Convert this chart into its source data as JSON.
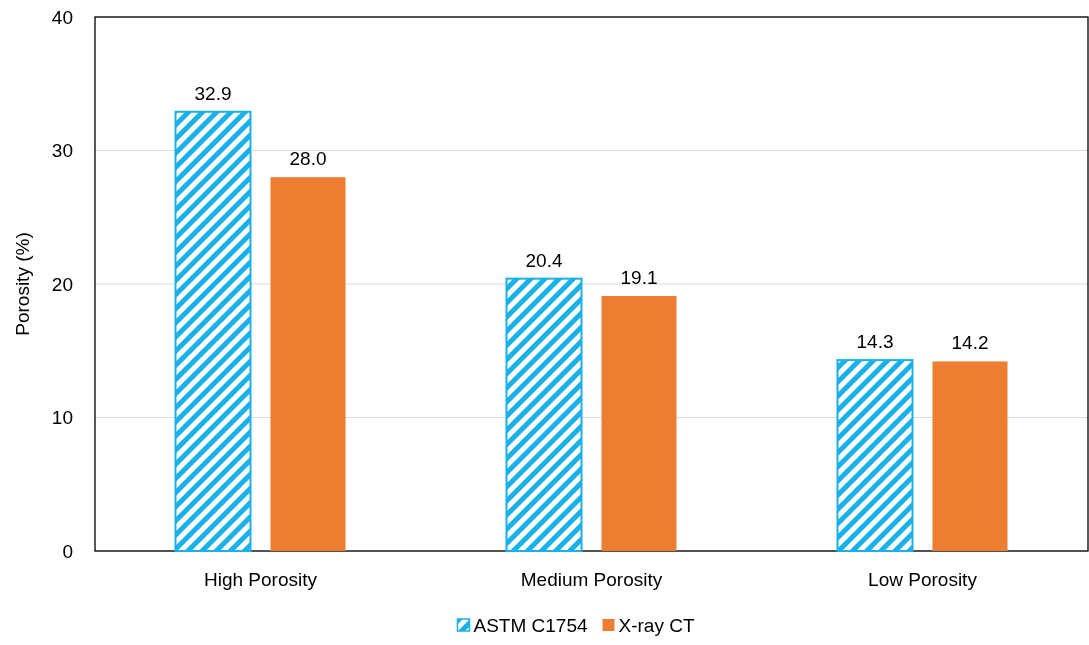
{
  "chart_data": {
    "type": "bar",
    "ylabel": "Porosity (%)",
    "categories": [
      "High Porosity",
      "Medium Porosity",
      "Low Porosity"
    ],
    "series": [
      {
        "name": "ASTM C1754",
        "color": "#1ab0e8",
        "values": [
          32.9,
          20.4,
          14.3
        ]
      },
      {
        "name": "X-ray CT",
        "color": "#ed7d31",
        "values": [
          28.0,
          19.1,
          14.2
        ]
      }
    ],
    "value_labels": [
      [
        "32.9",
        "20.4",
        "14.3"
      ],
      [
        "28.0",
        "19.1",
        "14.2"
      ]
    ],
    "ylim": [
      0,
      40
    ],
    "yticks": [
      0,
      10,
      20,
      30,
      40
    ],
    "grid": "y",
    "legend": "bottom"
  }
}
